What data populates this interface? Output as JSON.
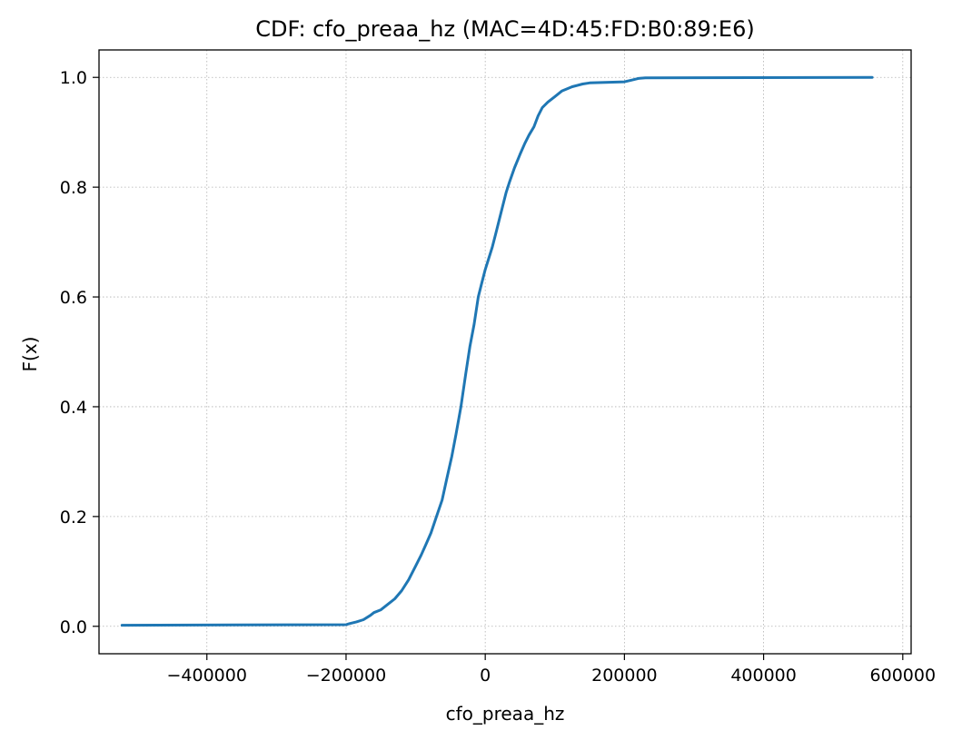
{
  "chart_data": {
    "type": "line",
    "title": "CDF: cfo_preaa_hz (MAC=4D:45:FD:B0:89:E6)",
    "xlabel": "cfo_preaa_hz",
    "ylabel": "F(x)",
    "xlim": [
      -555000,
      612000
    ],
    "ylim": [
      -0.05,
      1.05
    ],
    "x_ticks": [
      -400000,
      -200000,
      0,
      200000,
      400000,
      600000
    ],
    "x_tick_labels": [
      "−400000",
      "−200000",
      "0",
      "200000",
      "400000",
      "600000"
    ],
    "y_ticks": [
      0.0,
      0.2,
      0.4,
      0.6,
      0.8,
      1.0
    ],
    "y_tick_labels": [
      "0.0",
      "0.2",
      "0.4",
      "0.6",
      "0.8",
      "1.0"
    ],
    "grid": true,
    "legend": "none",
    "series": [
      {
        "color": "#1f77b4",
        "x": [
          -522000,
          -200000,
          -195000,
          -185000,
          -175000,
          -165000,
          -160000,
          -150000,
          -140000,
          -130000,
          -120000,
          -110000,
          -100000,
          -92000,
          -85000,
          -78000,
          -70000,
          -62000,
          -55000,
          -48000,
          -42000,
          -35000,
          -28000,
          -22000,
          -16000,
          -10000,
          -5000,
          0,
          5000,
          10000,
          15000,
          20000,
          25000,
          30000,
          35000,
          42000,
          50000,
          57000,
          63000,
          70000,
          76000,
          82000,
          90000,
          100000,
          110000,
          125000,
          140000,
          150000,
          200000,
          210000,
          220000,
          230000,
          556000
        ],
        "y": [
          0.002,
          0.003,
          0.005,
          0.008,
          0.012,
          0.02,
          0.025,
          0.03,
          0.04,
          0.05,
          0.065,
          0.085,
          0.11,
          0.13,
          0.15,
          0.17,
          0.2,
          0.23,
          0.27,
          0.31,
          0.35,
          0.4,
          0.46,
          0.51,
          0.55,
          0.6,
          0.625,
          0.65,
          0.67,
          0.69,
          0.715,
          0.74,
          0.765,
          0.79,
          0.81,
          0.835,
          0.86,
          0.88,
          0.895,
          0.91,
          0.93,
          0.945,
          0.955,
          0.965,
          0.975,
          0.983,
          0.988,
          0.99,
          0.992,
          0.995,
          0.998,
          0.999,
          1.0
        ]
      }
    ]
  }
}
